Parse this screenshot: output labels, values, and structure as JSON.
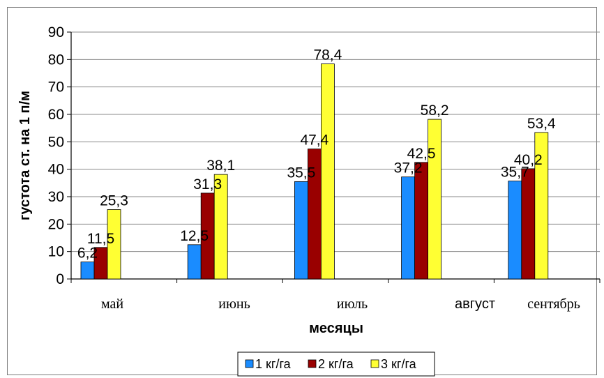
{
  "chart_data": {
    "type": "bar",
    "categories": [
      "май",
      "июнь",
      "июль",
      "август",
      "сентябрь"
    ],
    "series": [
      {
        "name": "1 кг/га",
        "values": [
          6.2,
          12.5,
          35.5,
          37.2,
          35.7
        ],
        "labels": [
          "6,2",
          "12,5",
          "35,5",
          "37,2",
          "35,7"
        ],
        "color": "#1a8cff"
      },
      {
        "name": "2 кг/га",
        "values": [
          11.5,
          31.3,
          47.4,
          42.5,
          40.2
        ],
        "labels": [
          "11,5",
          "31,3",
          "47,4",
          "42,5",
          "40,2"
        ],
        "color": "#990000"
      },
      {
        "name": "3 кг/га",
        "values": [
          25.3,
          38.1,
          78.4,
          58.2,
          53.4
        ],
        "labels": [
          "25,3",
          "38,1",
          "78,4",
          "58,2",
          "53,4"
        ],
        "color": "#ffff33"
      }
    ],
    "xlabel": "месяцы",
    "ylabel": "густота ст. на 1 п/м",
    "ylim": [
      0,
      90
    ],
    "yticks": [
      0,
      10,
      20,
      30,
      40,
      50,
      60,
      70,
      80,
      90
    ],
    "grid": true,
    "legend": "bottom"
  }
}
